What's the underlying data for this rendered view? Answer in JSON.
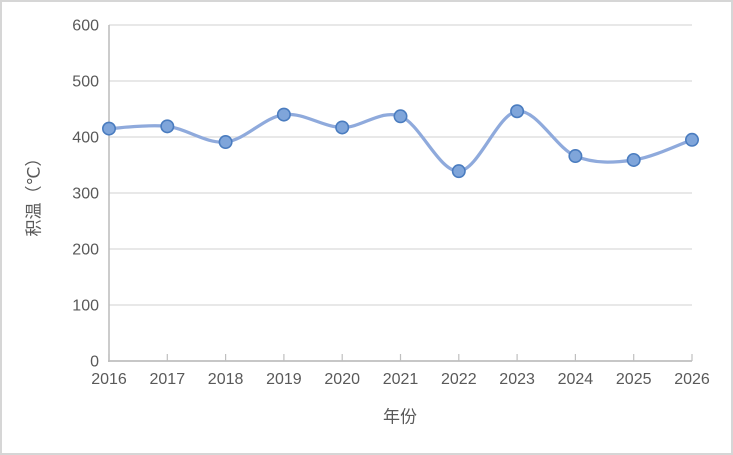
{
  "chart_data": {
    "type": "line",
    "title": "",
    "xlabel": "年份",
    "ylabel": "积温（℃）",
    "x": [
      2016,
      2017,
      2018,
      2019,
      2020,
      2021,
      2022,
      2023,
      2024,
      2025,
      2026
    ],
    "series": [
      {
        "name": "积温",
        "values": [
          415,
          419,
          391,
          440,
          417,
          437,
          339,
          446,
          366,
          359,
          395
        ]
      }
    ],
    "ylim": [
      0,
      600
    ],
    "yticks": [
      0,
      100,
      200,
      300,
      400,
      500,
      600
    ],
    "grid": "horizontal",
    "legend_position": "none",
    "smooth_line": true,
    "colors": {
      "line": "#8FAADC",
      "marker_fill": "#7FA5DA",
      "marker_stroke": "#4A7CBF",
      "gridline": "#D9D9D9",
      "axis": "#BFBFBF",
      "tick_text": "#595959",
      "frame_border": "#D6D6D6",
      "background": "#FFFFFF"
    }
  }
}
